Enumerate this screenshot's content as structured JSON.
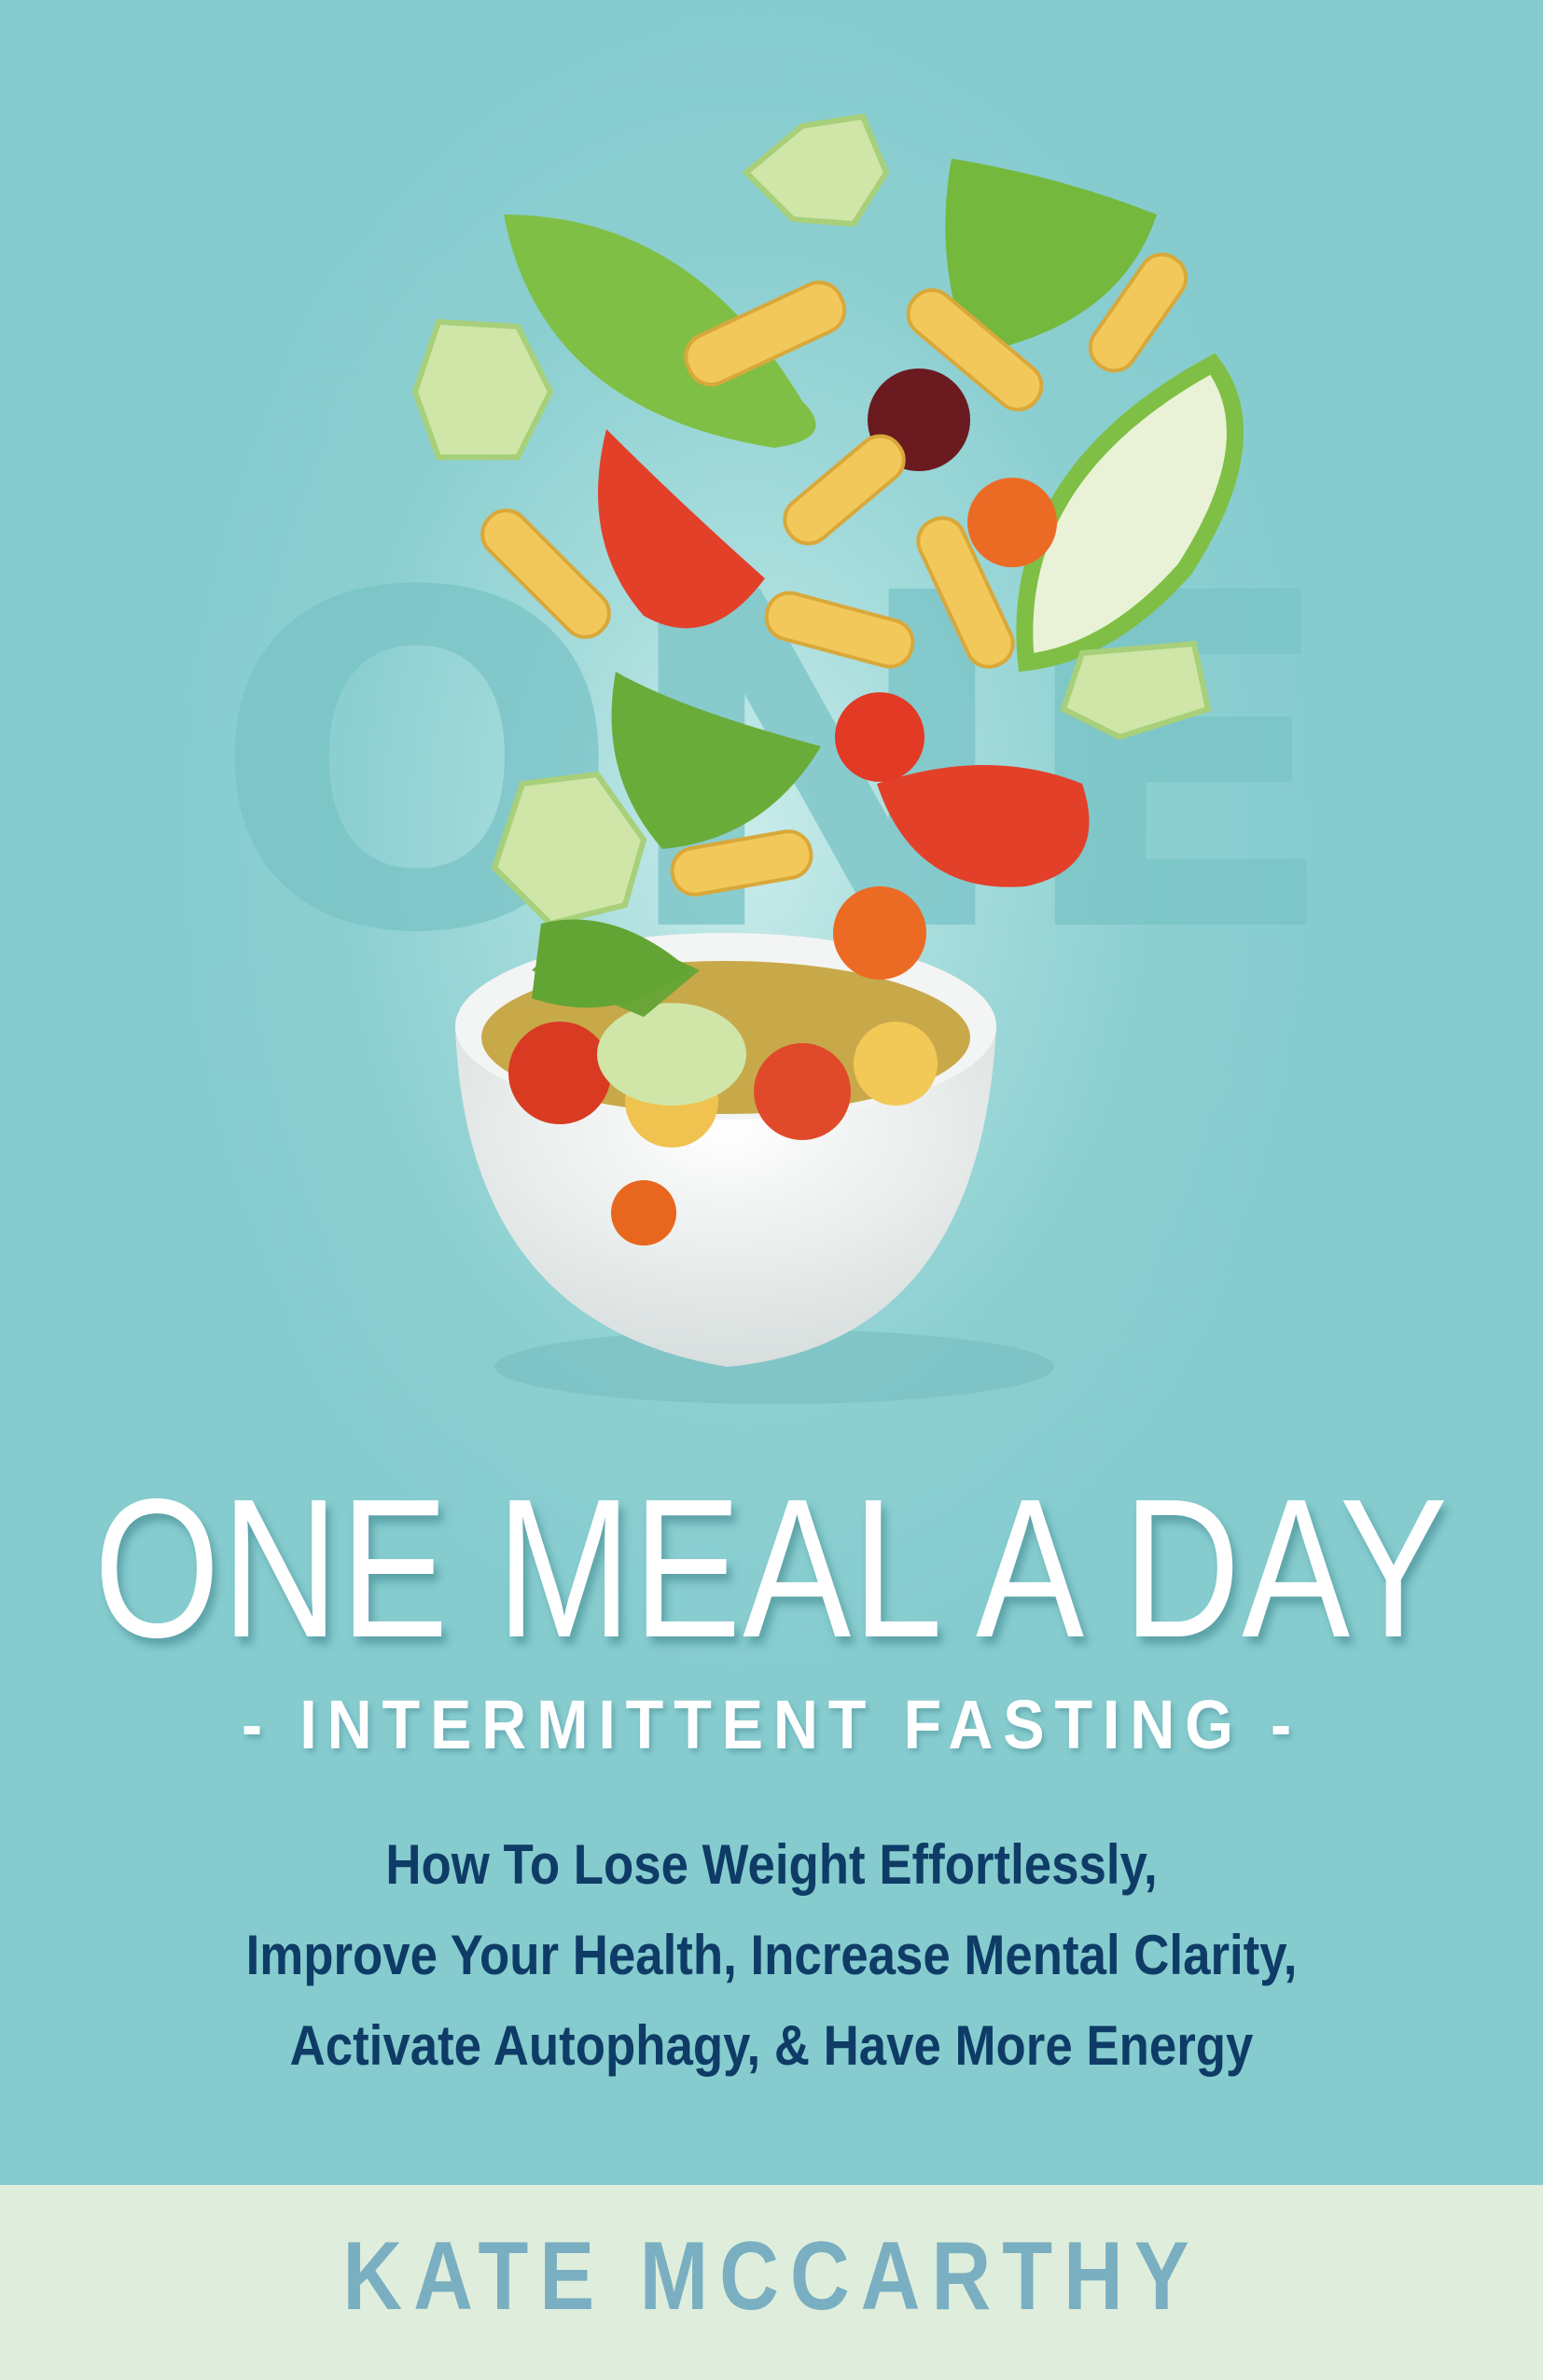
{
  "cover": {
    "watermark": "ONE",
    "title": "ONE MEAL A DAY",
    "subtitle": "- INTERMITTENT FASTING -",
    "tagline": [
      "How To Lose Weight Effortlessly,",
      "Improve Your Health, Increase Mental Clarity,",
      "Activate Autophagy, & Have More Energy"
    ],
    "author": "KATE MCCARTHY"
  },
  "colors": {
    "background": "#88cfd1",
    "title": "#ffffff",
    "tagline": "#0e3c66",
    "author_band": "#dfeedc",
    "author_text": "#7aafc1"
  },
  "illustration": "salad-bowl-with-falling-vegetables-and-pasta"
}
